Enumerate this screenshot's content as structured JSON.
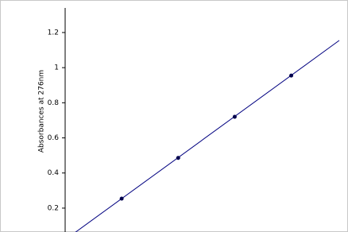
{
  "chart_data": {
    "type": "scatter",
    "y_label": "Absorbances at 276nm",
    "x": [
      1,
      2,
      3,
      4
    ],
    "series": [
      {
        "color": "#00004d",
        "values": [
          0.254,
          0.486,
          0.72,
          0.955
        ]
      }
    ],
    "trendline": {
      "slope": 0.234,
      "intercept": 0.02,
      "color": "#000080"
    },
    "xlim": [
      0,
      4.85
    ],
    "ylim": [
      0.064,
      1.34
    ],
    "yticks": [
      0.2,
      0.4,
      0.6,
      0.8,
      1,
      1.2
    ]
  }
}
